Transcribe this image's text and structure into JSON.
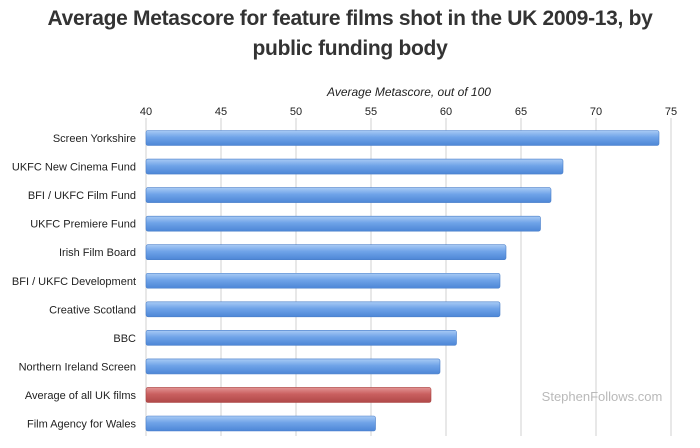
{
  "chart_data": {
    "type": "bar",
    "orientation": "horizontal",
    "title": "Average Metascore for feature films shot in the UK 2009-13, by public funding body",
    "xlabel": "Average Metascore, out of 100",
    "ylabel": "",
    "xlim": [
      40,
      75
    ],
    "ticks": [
      40,
      45,
      50,
      55,
      60,
      65,
      70,
      75
    ],
    "grid": true,
    "legend": "none",
    "categories": [
      "Screen Yorkshire",
      "UKFC New Cinema Fund",
      "BFI / UKFC Film Fund",
      "UKFC Premiere Fund",
      "Irish Film Board",
      "BFI / UKFC Development",
      "Creative Scotland",
      "BBC",
      "Northern Ireland Screen",
      "Average of all UK films",
      "Film Agency for Wales"
    ],
    "values": [
      74.2,
      67.8,
      67.0,
      66.3,
      64.0,
      63.6,
      63.6,
      60.7,
      59.6,
      59.0,
      55.3
    ],
    "highlight": [
      "#3b5b9a",
      "#3b5b9a",
      "#3b5b9a",
      "#3b5b9a",
      "#3b5b9a",
      "#3b5b9a",
      "#3b5b9a",
      "#3b5b9a",
      "#3b5b9a",
      "#c0504d",
      "#3b5b9a"
    ],
    "colors": {
      "bar": "#6fa3e8",
      "bar_highlight": "#c95f5f",
      "grid": "#d0d0d0"
    },
    "watermark": "StephenFollows.com"
  }
}
